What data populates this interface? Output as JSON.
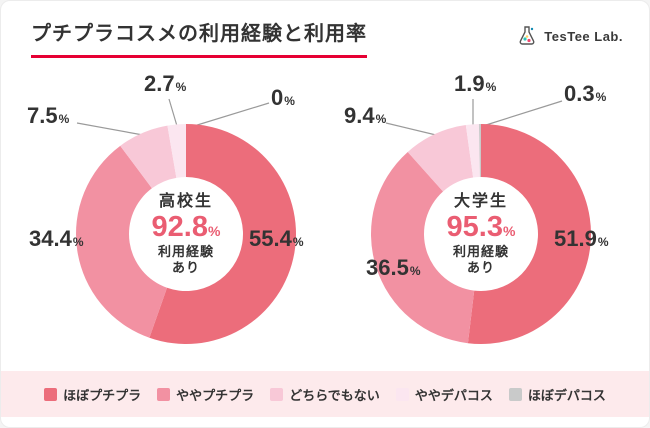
{
  "page": {
    "title": "プチプラコスメの利用経験と利用率"
  },
  "brand": {
    "name": "TesTee Lab."
  },
  "unit": "%",
  "colors": {
    "accent_underline": "#e60033",
    "rate_pink": "#ea5d72",
    "legend_band_bg": "#fdeaec",
    "leader_line": "#9a9a9a"
  },
  "chart_data": [
    {
      "type": "pie",
      "title": "高校生",
      "labels": [
        "ほぼプチプラ",
        "ややプチプラ",
        "どちらでもない",
        "ややデパコス",
        "ほぼデパコス"
      ],
      "values": [
        55.4,
        34.4,
        7.5,
        2.7,
        0
      ],
      "value_displays": [
        "55.4",
        "34.4",
        "7.5",
        "2.7",
        "0"
      ],
      "center": {
        "group": "高校生",
        "usage_rate": "92.8",
        "note1": "利用経験",
        "note2": "あり"
      }
    },
    {
      "type": "pie",
      "title": "大学生",
      "labels": [
        "ほぼプチプラ",
        "ややプチプラ",
        "どちらでもない",
        "ややデパコス",
        "ほぼデパコス"
      ],
      "values": [
        51.9,
        36.5,
        9.4,
        1.9,
        0.3
      ],
      "value_displays": [
        "51.9",
        "36.5",
        "9.4",
        "1.9",
        "0.3"
      ],
      "center": {
        "group": "大学生",
        "usage_rate": "95.3",
        "note1": "利用経験",
        "note2": "あり"
      }
    }
  ],
  "legend": {
    "items": [
      {
        "label": "ほぼプチプラ",
        "color": "#ec6d7b"
      },
      {
        "label": "ややプチプラ",
        "color": "#f291a2"
      },
      {
        "label": "どちらでもない",
        "color": "#f8c8d7"
      },
      {
        "label": "ややデパコス",
        "color": "#fbe6f0"
      },
      {
        "label": "ほぼデパコス",
        "color": "#c9caca"
      }
    ]
  }
}
